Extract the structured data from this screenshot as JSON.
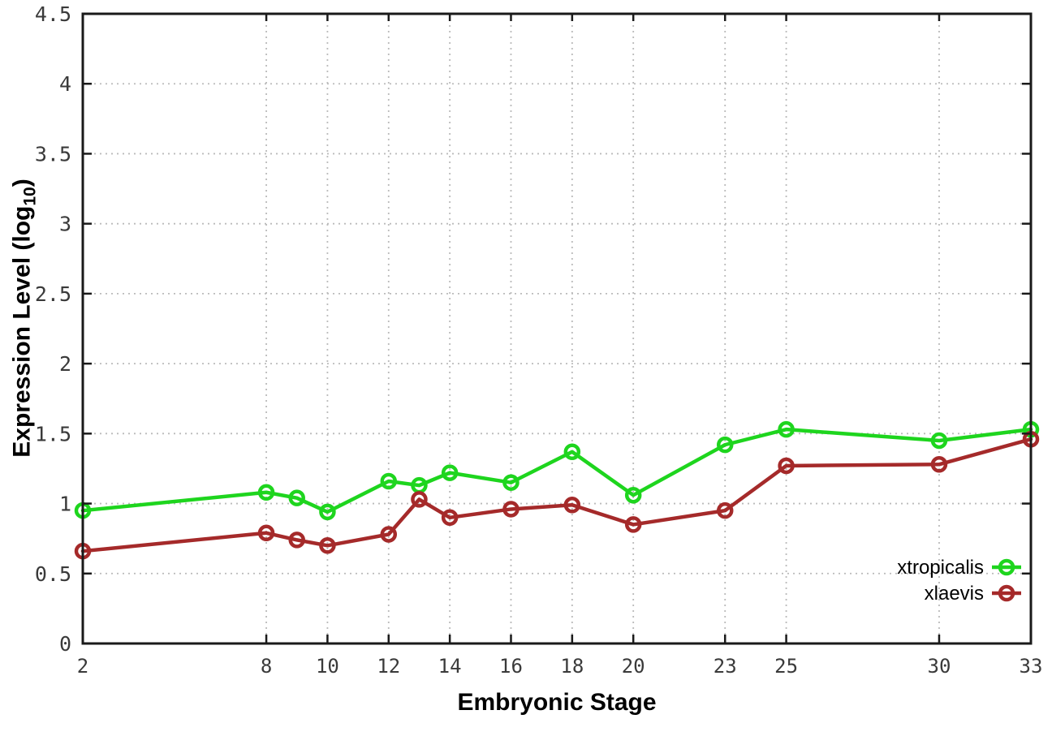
{
  "chart_data": {
    "type": "line",
    "title": "",
    "xlabel": "Embryonic Stage",
    "ylabel": "Expression Level (log10)",
    "ylabel_rich": {
      "prefix": "Expression Level (log",
      "subscript": "10",
      "suffix": ")"
    },
    "x": [
      2,
      8,
      9,
      10,
      12,
      13,
      14,
      16,
      18,
      20,
      23,
      25,
      30,
      33
    ],
    "xticks": [
      2,
      8,
      10,
      12,
      14,
      16,
      18,
      20,
      23,
      25,
      30,
      33
    ],
    "yticks": [
      0,
      0.5,
      1,
      1.5,
      2,
      2.5,
      3,
      3.5,
      4,
      4.5
    ],
    "xlim": [
      2,
      33
    ],
    "ylim": [
      0,
      4.5
    ],
    "grid": true,
    "legend_position": "inside-bottom-right",
    "series": [
      {
        "name": "xtropicalis",
        "color": "#1ed51e",
        "marker": "open-circle",
        "values": [
          0.95,
          1.08,
          1.04,
          0.94,
          1.16,
          1.13,
          1.22,
          1.15,
          1.37,
          1.06,
          1.42,
          1.53,
          1.45,
          1.53
        ]
      },
      {
        "name": "xlaevis",
        "color": "#a52a2a",
        "marker": "open-circle",
        "values": [
          0.66,
          0.79,
          0.74,
          0.7,
          0.78,
          1.03,
          0.9,
          0.96,
          0.99,
          0.85,
          0.95,
          1.27,
          1.28,
          1.46
        ]
      }
    ],
    "colors": {
      "grid": "#bbbbbb",
      "frame": "#1a1a1a",
      "tick_text": "#3a3a3a",
      "legend_text": "#000000",
      "background": "#ffffff"
    }
  }
}
